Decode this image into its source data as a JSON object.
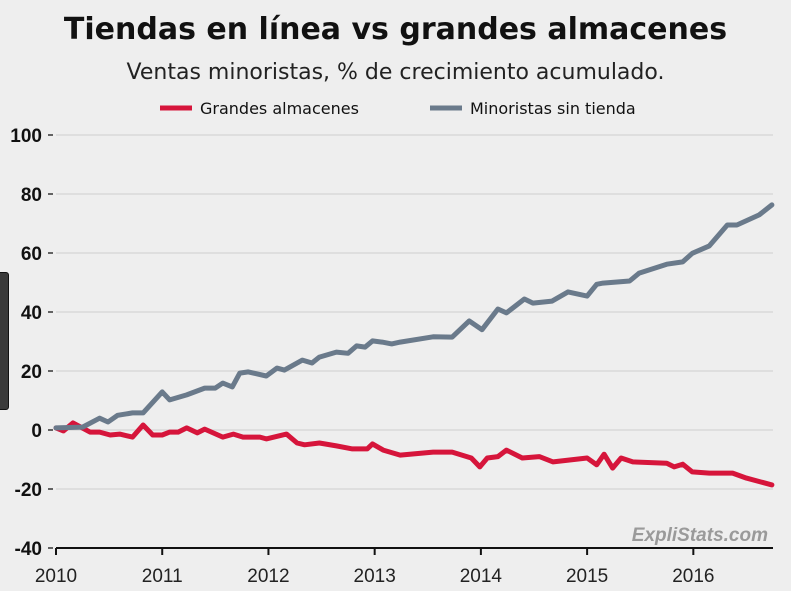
{
  "chart_data": {
    "type": "line",
    "title": "Tiendas en línea vs grandes almacenes",
    "subtitle": "Ventas minoristas, % de crecimiento acumulado.",
    "xlabel": "",
    "ylabel": "",
    "xlim": [
      2010,
      2016.75
    ],
    "ylim": [
      -40,
      100
    ],
    "x_ticks": [
      2010,
      2011,
      2012,
      2013,
      2014,
      2015,
      2016
    ],
    "x_tick_labels": [
      "2010",
      "2011",
      "2012",
      "2013",
      "2014",
      "2015",
      "2016"
    ],
    "y_ticks": [
      -40,
      -20,
      0,
      20,
      40,
      60,
      80,
      100
    ],
    "y_tick_labels": [
      "-40",
      "-20",
      "0",
      "20",
      "40",
      "60",
      "80",
      "100"
    ],
    "grid": true,
    "legend_position": "top",
    "watermark": "ExpliStats.com",
    "series": [
      {
        "name": "Grandes almacenes",
        "color": "#d6153b",
        "x": [
          2010.0,
          2010.07,
          2010.16,
          2010.32,
          2010.41,
          2010.51,
          2010.6,
          2010.72,
          2010.82,
          2010.91,
          2011.0,
          2011.07,
          2011.15,
          2011.23,
          2011.33,
          2011.4,
          2011.57,
          2011.67,
          2011.76,
          2011.92,
          2011.98,
          2012.17,
          2012.27,
          2012.34,
          2012.48,
          2012.64,
          2012.79,
          2012.93,
          2012.98,
          2013.08,
          2013.24,
          2013.55,
          2013.73,
          2013.91,
          2013.99,
          2014.06,
          2014.16,
          2014.24,
          2014.39,
          2014.55,
          2014.68,
          2015.0,
          2015.09,
          2015.16,
          2015.24,
          2015.32,
          2015.43,
          2015.75,
          2015.82,
          2015.9,
          2015.99,
          2016.15,
          2016.37,
          2016.5,
          2016.74
        ],
        "values": [
          0.7,
          -0.3,
          2.4,
          -0.7,
          -0.7,
          -1.7,
          -1.4,
          -2.4,
          1.7,
          -1.7,
          -1.7,
          -0.7,
          -0.7,
          0.7,
          -1.0,
          0.3,
          -2.4,
          -1.4,
          -2.4,
          -2.4,
          -3.0,
          -1.4,
          -4.4,
          -5.0,
          -4.4,
          -5.4,
          -6.4,
          -6.4,
          -4.7,
          -6.8,
          -8.5,
          -7.5,
          -7.5,
          -9.5,
          -12.5,
          -9.5,
          -9.0,
          -6.8,
          -9.5,
          -9.0,
          -10.8,
          -9.5,
          -11.8,
          -8.2,
          -12.9,
          -9.5,
          -10.8,
          -11.3,
          -12.5,
          -11.6,
          -14.2,
          -14.6,
          -14.6,
          -16.3,
          -18.6
        ]
      },
      {
        "name": "Minoristas sin tienda",
        "color": "#6a7a8b",
        "x": [
          2010.0,
          2010.25,
          2010.41,
          2010.49,
          2010.58,
          2010.72,
          2010.82,
          2011.0,
          2011.07,
          2011.23,
          2011.4,
          2011.5,
          2011.57,
          2011.66,
          2011.73,
          2011.81,
          2011.98,
          2012.08,
          2012.15,
          2012.32,
          2012.41,
          2012.48,
          2012.64,
          2012.75,
          2012.83,
          2012.91,
          2012.98,
          2013.07,
          2013.16,
          2013.24,
          2013.55,
          2013.73,
          2013.89,
          2014.01,
          2014.16,
          2014.24,
          2014.41,
          2014.49,
          2014.67,
          2014.82,
          2015.0,
          2015.09,
          2015.15,
          2015.4,
          2015.49,
          2015.75,
          2015.9,
          2015.99,
          2016.15,
          2016.32,
          2016.41,
          2016.62,
          2016.74
        ],
        "values": [
          0.7,
          1.0,
          4.0,
          2.7,
          5.0,
          5.8,
          5.8,
          12.9,
          10.2,
          11.9,
          14.2,
          14.2,
          15.9,
          14.6,
          19.3,
          19.7,
          18.3,
          21.0,
          20.3,
          23.7,
          22.7,
          24.7,
          26.4,
          26.0,
          28.5,
          28.1,
          30.2,
          29.8,
          29.2,
          29.8,
          31.6,
          31.5,
          37.0,
          34.0,
          41.0,
          39.7,
          44.4,
          43.0,
          43.7,
          46.8,
          45.4,
          49.4,
          49.8,
          50.5,
          53.2,
          56.2,
          57.0,
          59.9,
          62.4,
          69.5,
          69.5,
          72.9,
          76.3
        ]
      }
    ]
  }
}
